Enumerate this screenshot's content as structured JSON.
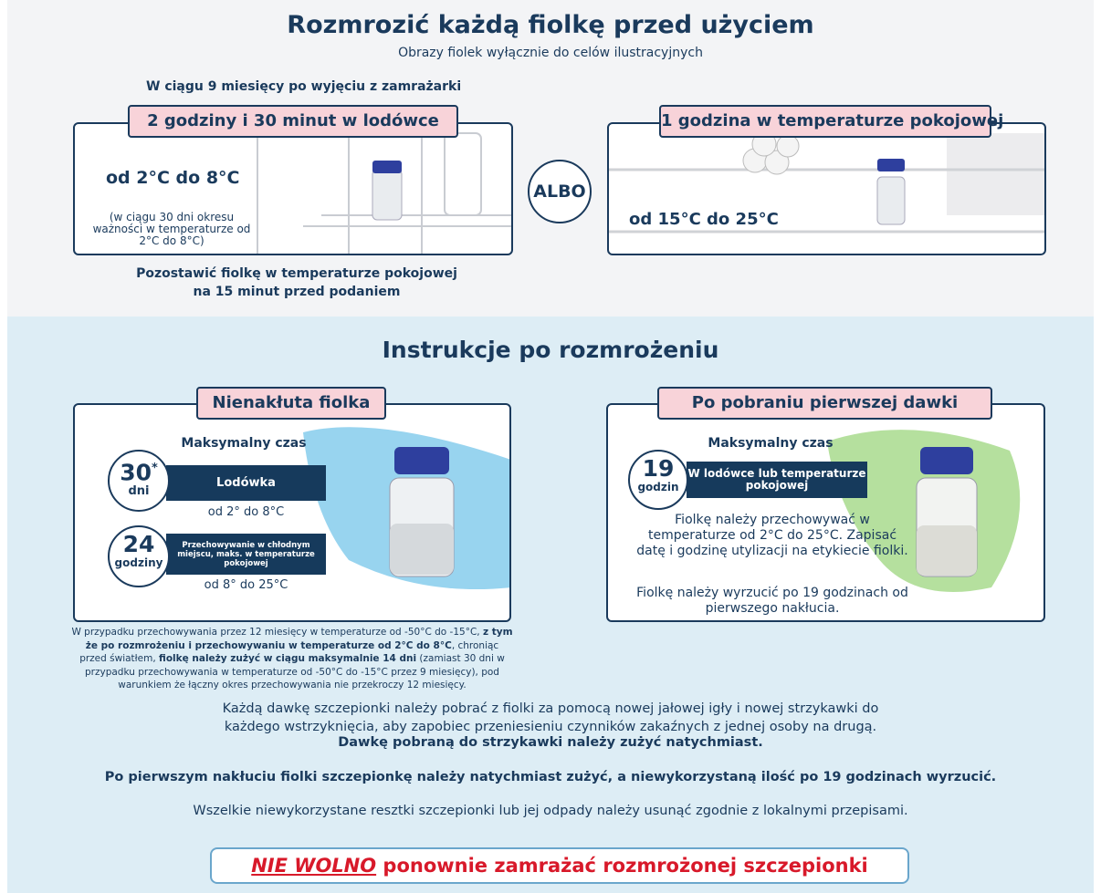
{
  "header": {
    "title": "Rozmrozić każdą fiolkę przed użyciem",
    "subtitle": "Obrazy fiolek wyłącznie do celów ilustracyjnych"
  },
  "thaw": {
    "timeframe": "W ciągu 9 miesięcy po wyjęciu z zamrażarki",
    "fridge": {
      "label": "2 godziny i 30 minut w lodówce",
      "range": "od 2°C do 8°C",
      "note": "(w ciągu 30 dni okresu ważności w temperaturze od 2°C do 8°C)"
    },
    "or": "ALBO",
    "room": {
      "label": "1 godzina w temperaturze pokojowej",
      "range": "od 15°C do 25°C"
    },
    "after": [
      "Pozostawić fiolkę w temperaturze pokojowej",
      "na 15 minut przed podaniem"
    ]
  },
  "instructions": {
    "title": "Instrukcje po rozmrożeniu",
    "unpunctured": {
      "label": "Nienakłuta fiolka",
      "max_time": "Maksymalny czas",
      "items": [
        {
          "number": 30,
          "star": "*",
          "unit": "dni",
          "label": "Lodówka",
          "range": "od 2° do 8°C"
        },
        {
          "number": 24,
          "unit": "godziny",
          "label": "Przechowywanie w chłodnym miejscu, maks. w temperaturze pokojowej",
          "range": "od 8° do 25°C"
        }
      ]
    },
    "after_first_dose": {
      "label": "Po pobraniu pierwszej dawki",
      "max_time": "Maksymalny czas",
      "number": 19,
      "unit": "godzin",
      "bar": "W lodówce lub temperaturze pokojowej",
      "text": [
        "Fiolkę należy przechowywać w temperaturze od 2°C  do 25°C. Zapisać datę i godzinę utylizacji na etykiecie fiolki.",
        "Fiolkę należy wyrzucić po 19 godzinach od pierwszego nakłucia."
      ]
    },
    "footnote": [
      "W przypadku przechowywania przez 12 miesięcy w temperaturze od -50°C do -15°C, ",
      "z tym że po rozmrożeniu i przechowywaniu w temperaturze od 2°C do 8°C",
      ", chroniąc przed światłem, ",
      "fiolkę należy zużyć w ciągu maksymalnie 14 dni",
      " (zamiast 30 dni w przypadku przechowywania w temperaturze od -50°C do -15°C przez 9 miesięcy), pod warunkiem że łączny okres przechowywania nie przekroczy 12 miesięcy."
    ]
  },
  "notes": {
    "syringe": "Każdą dawkę szczepionki należy pobrać z fiolki za pomocą nowej jałowej igły i nowej strzykawki do każdego wstrzyknięcia, aby zapobiec przeniesieniu czynników zakaźnych z jednej osoby na drugą.",
    "immediate": "Dawkę pobraną do strzykawki należy zużyć natychmiast.",
    "after_puncture": "Po pierwszym nakłuciu fiolki szczepionkę należy natychmiast zużyć, a niewykorzystaną ilość po 19 godzinach wyrzucić.",
    "disposal": "Wszelkie niewykorzystane resztki szczepionki lub jej odpady należy usunąć zgodnie z lokalnymi przepisami."
  },
  "warning": {
    "emphasis": "NIE WOLNO",
    "text": "ponownie zamrażać rozmrożonej szczepionki"
  }
}
